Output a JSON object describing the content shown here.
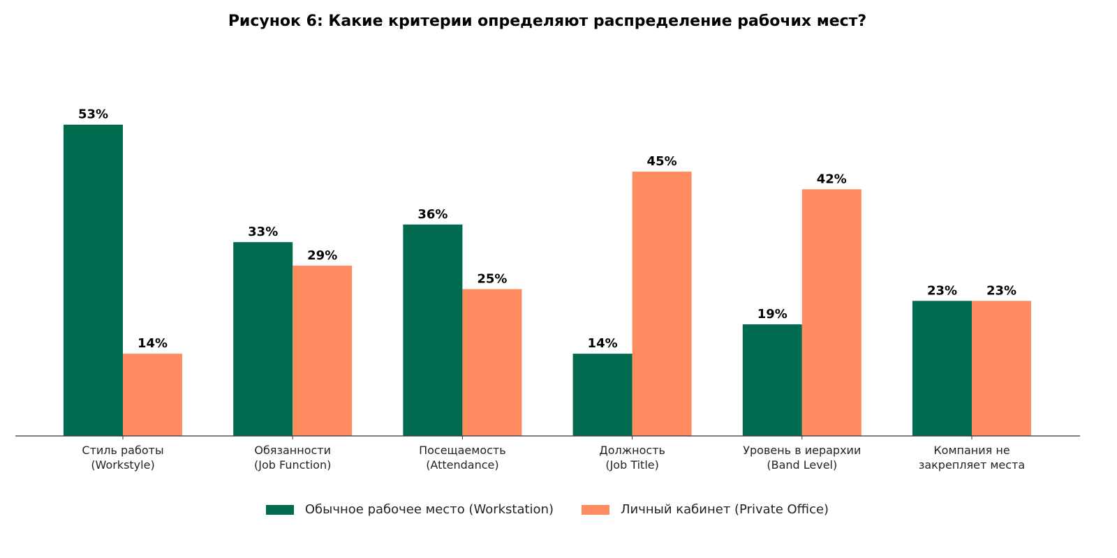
{
  "chart_data": {
    "type": "bar",
    "title": "Рисунок 6: Какие критерии определяют распределение рабочих мест?",
    "categories": [
      [
        "Стиль работы",
        "(Workstyle)"
      ],
      [
        "Обязанности",
        "(Job Function)"
      ],
      [
        "Посещаемость",
        "(Attendance)"
      ],
      [
        "Должность",
        "(Job Title)"
      ],
      [
        "Уровень в иерархии",
        "(Band Level)"
      ],
      [
        "Компания не",
        "закрепляет места"
      ]
    ],
    "series": [
      {
        "name": "Обычное рабочее место (Workstation)",
        "color": "#006B4F",
        "values": [
          53,
          33,
          36,
          14,
          19,
          23
        ]
      },
      {
        "name": "Личный кабинет (Private Office)",
        "color": "#FF8C61",
        "values": [
          14,
          29,
          25,
          45,
          42,
          23
        ]
      }
    ],
    "value_suffix": "%",
    "xlabel": "",
    "ylabel": "",
    "ylim": [
      0,
      62
    ],
    "grid": false,
    "legend_position": "bottom-center"
  }
}
